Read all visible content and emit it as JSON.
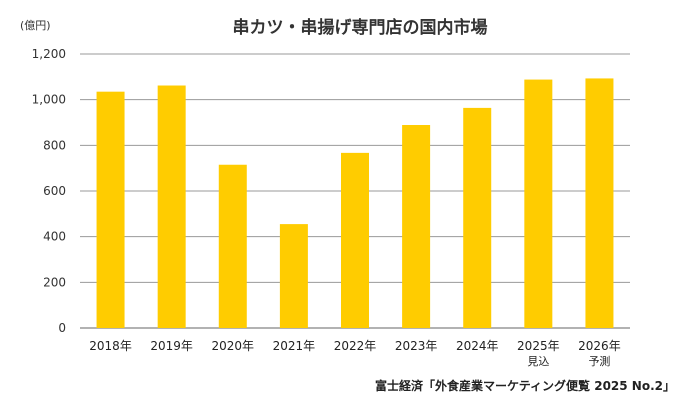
{
  "chart_data": {
    "type": "bar",
    "title": "串カツ・串揚げ専門店の国内市場",
    "ylabel": "(億円)",
    "xlabel": "",
    "categories": [
      "2018年",
      "2019年",
      "2020年",
      "2021年",
      "2022年",
      "2023年",
      "2024年",
      "2025年",
      "2026年"
    ],
    "category_notes": [
      "",
      "",
      "",
      "",
      "",
      "",
      "",
      "見込",
      "予測"
    ],
    "values": [
      1035,
      1062,
      715,
      455,
      767,
      889,
      964,
      1088,
      1093
    ],
    "ylim": [
      0,
      1200
    ],
    "yticks": [
      0,
      200,
      400,
      600,
      800,
      1000,
      1200
    ],
    "ytick_labels": [
      "0",
      "200",
      "400",
      "600",
      "800",
      "1,000",
      "1,200"
    ],
    "grid": true,
    "colors": {
      "bar": "#ffcc00",
      "grid": "#9a9a9a"
    }
  },
  "source": "富士経済「外食産業マーケティング便覧 2025 No.2」"
}
